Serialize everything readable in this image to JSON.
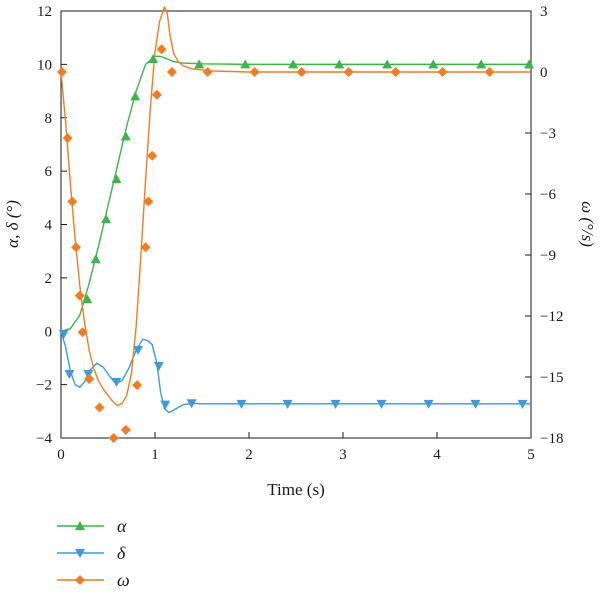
{
  "chart_data": {
    "type": "line",
    "xlabel": "Time (s)",
    "ylabel_left": "α, δ (°)",
    "ylabel_right": "ω (°/s)",
    "xlim": [
      0,
      5
    ],
    "ylim_left": [
      -4,
      12
    ],
    "ylim_right": [
      -18,
      3
    ],
    "x_ticks": [
      "0",
      "1",
      "2",
      "3",
      "4",
      "5"
    ],
    "y_ticks_left": [
      "−4",
      "−2",
      "0",
      "2",
      "4",
      "6",
      "8",
      "10",
      "12"
    ],
    "y_ticks_right": [
      "−18",
      "−15",
      "−12",
      "−9",
      "−6",
      "−3",
      "0",
      "3"
    ],
    "grid": false,
    "legend_position": "bottom-left",
    "series": [
      {
        "name": "α",
        "axis": "left",
        "color": "#3cb54a",
        "marker": "triangle-up",
        "x": [
          0,
          0.1,
          0.2,
          0.3,
          0.4,
          0.5,
          0.6,
          0.7,
          0.8,
          0.9,
          1.0,
          1.05,
          1.1,
          1.2,
          1.3,
          1.5,
          2.0,
          2.5,
          3.0,
          3.5,
          4.0,
          4.5,
          5.0
        ],
        "y": [
          0,
          0.1,
          0.6,
          1.8,
          3.2,
          4.7,
          6.2,
          7.7,
          9.0,
          10.0,
          10.3,
          10.3,
          10.25,
          10.1,
          10.05,
          10.02,
          10.0,
          10.0,
          10.0,
          10.0,
          10.0,
          10.0,
          10.0
        ],
        "marker_x": [
          0.28,
          0.37,
          0.48,
          0.59,
          0.69,
          0.79,
          0.98,
          1.47,
          1.96,
          2.47,
          2.96,
          3.47,
          3.96,
          4.47,
          4.98
        ],
        "marker_y": [
          1.2,
          2.7,
          4.2,
          5.7,
          7.3,
          8.8,
          10.2,
          10.0,
          10.0,
          10.0,
          10.0,
          10.0,
          10.0,
          10.0,
          10.0
        ]
      },
      {
        "name": "δ",
        "axis": "left",
        "color": "#3e9ad8",
        "marker": "triangle-down",
        "x": [
          0,
          0.05,
          0.1,
          0.15,
          0.2,
          0.25,
          0.3,
          0.38,
          0.45,
          0.52,
          0.58,
          0.65,
          0.72,
          0.8,
          0.87,
          0.92,
          0.97,
          1.02,
          1.06,
          1.1,
          1.15,
          1.2,
          1.3,
          1.4,
          1.5,
          1.7,
          2.0,
          2.5,
          3.0,
          3.5,
          4.0,
          4.5,
          5.0
        ],
        "y": [
          0,
          -0.6,
          -1.5,
          -2.0,
          -2.1,
          -1.9,
          -1.5,
          -1.2,
          -1.35,
          -1.7,
          -1.95,
          -1.85,
          -1.4,
          -0.7,
          -0.3,
          -0.35,
          -0.5,
          -1.2,
          -2.3,
          -2.9,
          -3.05,
          -2.95,
          -2.75,
          -2.7,
          -2.72,
          -2.72,
          -2.72,
          -2.72,
          -2.72,
          -2.72,
          -2.72,
          -2.72,
          -2.72
        ],
        "marker_x": [
          0.03,
          0.09,
          0.29,
          0.59,
          0.82,
          1.04,
          1.11,
          1.39,
          1.92,
          2.41,
          2.92,
          3.41,
          3.91,
          4.41,
          4.91
        ],
        "marker_y": [
          -0.1,
          -1.6,
          -1.6,
          -1.9,
          -0.7,
          -1.3,
          -2.75,
          -2.7,
          -2.72,
          -2.72,
          -2.72,
          -2.72,
          -2.72,
          -2.72,
          -2.72
        ]
      },
      {
        "name": "ω",
        "axis": "right",
        "color": "#f07d22",
        "marker": "diamond",
        "x": [
          0,
          0.05,
          0.1,
          0.15,
          0.2,
          0.25,
          0.3,
          0.35,
          0.4,
          0.45,
          0.5,
          0.55,
          0.6,
          0.65,
          0.7,
          0.75,
          0.8,
          0.85,
          0.9,
          0.95,
          1.0,
          1.05,
          1.1,
          1.13,
          1.16,
          1.2,
          1.25,
          1.3,
          1.4,
          1.6,
          2.0,
          2.5,
          3.0,
          3.5,
          4.0,
          4.5,
          5.0
        ],
        "y": [
          0,
          -2.5,
          -5.5,
          -8.2,
          -10.5,
          -12.3,
          -13.7,
          -14.6,
          -15.2,
          -15.6,
          -15.9,
          -16.2,
          -16.4,
          -16.3,
          -15.9,
          -14.8,
          -12.5,
          -9.0,
          -5.3,
          -1.8,
          1.0,
          2.5,
          3.2,
          2.9,
          1.8,
          0.9,
          0.5,
          0.3,
          0.15,
          0.05,
          0,
          0,
          0,
          0,
          0,
          0,
          0
        ],
        "marker_x": [
          0.01,
          0.07,
          0.12,
          0.16,
          0.2,
          0.23,
          0.3,
          0.41,
          0.56,
          0.69,
          0.81,
          0.9,
          0.93,
          0.97,
          1.02,
          1.07,
          1.18,
          1.56,
          2.06,
          2.56,
          3.06,
          3.56,
          4.06,
          4.56
        ],
        "marker_y": [
          0,
          -3.25,
          -6.37,
          -8.62,
          -11.0,
          -12.8,
          -15.1,
          -16.5,
          -18.0,
          -17.6,
          -15.4,
          -8.62,
          -6.37,
          -4.12,
          -1.12,
          1.12,
          0,
          0,
          0,
          0,
          0,
          0,
          0,
          0
        ]
      }
    ]
  }
}
